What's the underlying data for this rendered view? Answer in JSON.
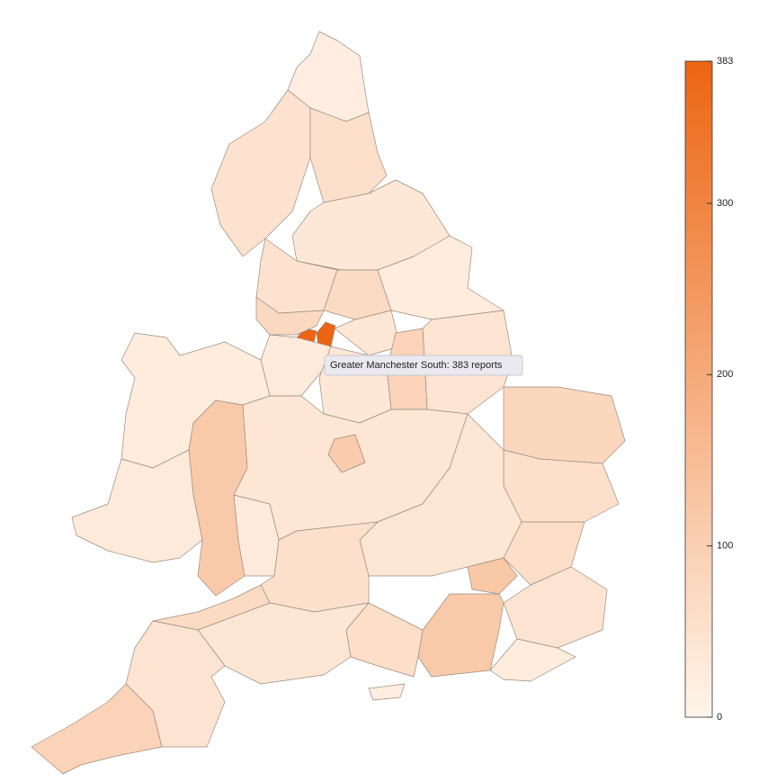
{
  "color_scale": {
    "min": 0,
    "max": 383,
    "ticks": [
      0,
      100,
      200,
      300,
      383
    ],
    "colors": [
      "#fff5eb",
      "#ec6512"
    ]
  },
  "regions": [
    {
      "value": 20
    },
    {
      "value": 50
    },
    {
      "value": 55
    },
    {
      "value": 35
    },
    {
      "value": 50
    },
    {
      "value": 70
    },
    {
      "value": 25
    },
    {
      "value": 383
    },
    {
      "value": 75
    },
    {
      "value": 40
    },
    {
      "value": 45
    },
    {
      "value": 90
    },
    {
      "value": 30
    },
    {
      "value": 35
    },
    {
      "value": 110
    },
    {
      "value": 25
    },
    {
      "value": 115
    },
    {
      "value": 30
    },
    {
      "value": 30
    },
    {
      "value": 40
    },
    {
      "value": 80
    },
    {
      "value": 55
    },
    {
      "value": 40
    },
    {
      "value": 60
    },
    {
      "value": 120
    },
    {
      "value": 55
    },
    {
      "value": 45
    },
    {
      "value": 115
    },
    {
      "value": 60
    },
    {
      "value": 25
    },
    {
      "value": 40
    },
    {
      "value": 70
    },
    {
      "value": 45
    },
    {
      "value": 90
    },
    {
      "value": 20
    }
  ],
  "tooltip": "Greater Manchester South: 383 reports"
}
